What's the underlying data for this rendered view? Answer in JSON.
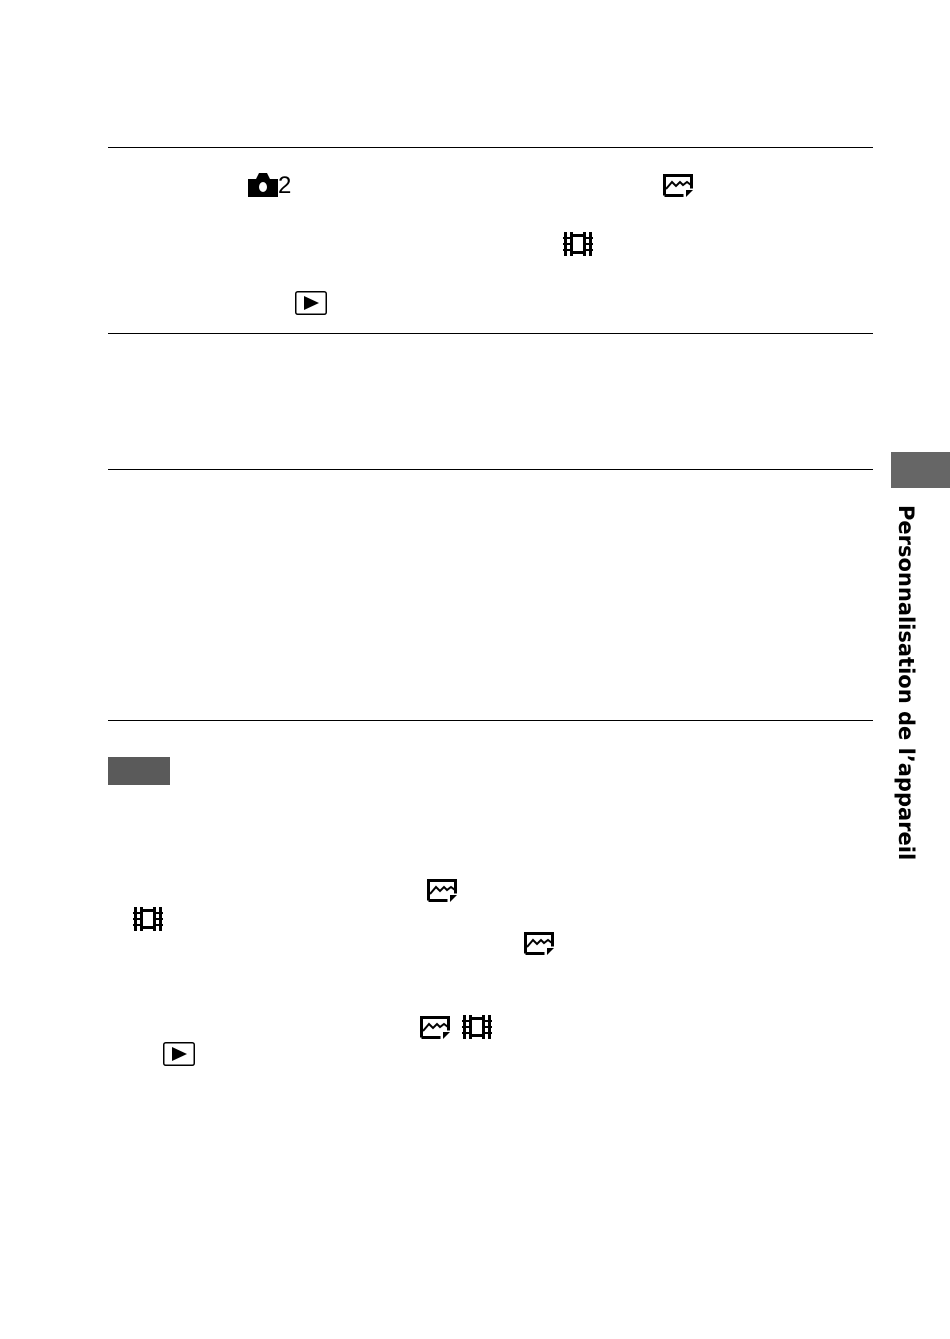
{
  "table": {
    "rules": 4
  },
  "icons": {
    "shooting_menu": "camera-icon",
    "shooting_menu_number": "2",
    "still": "still-image-icon",
    "movie": "movie-icon",
    "playback": "playback-icon"
  },
  "note_label_color": "#5a5a5a",
  "side_tab": {
    "label": "Personnalisation de l’appareil",
    "color": "#666666"
  }
}
